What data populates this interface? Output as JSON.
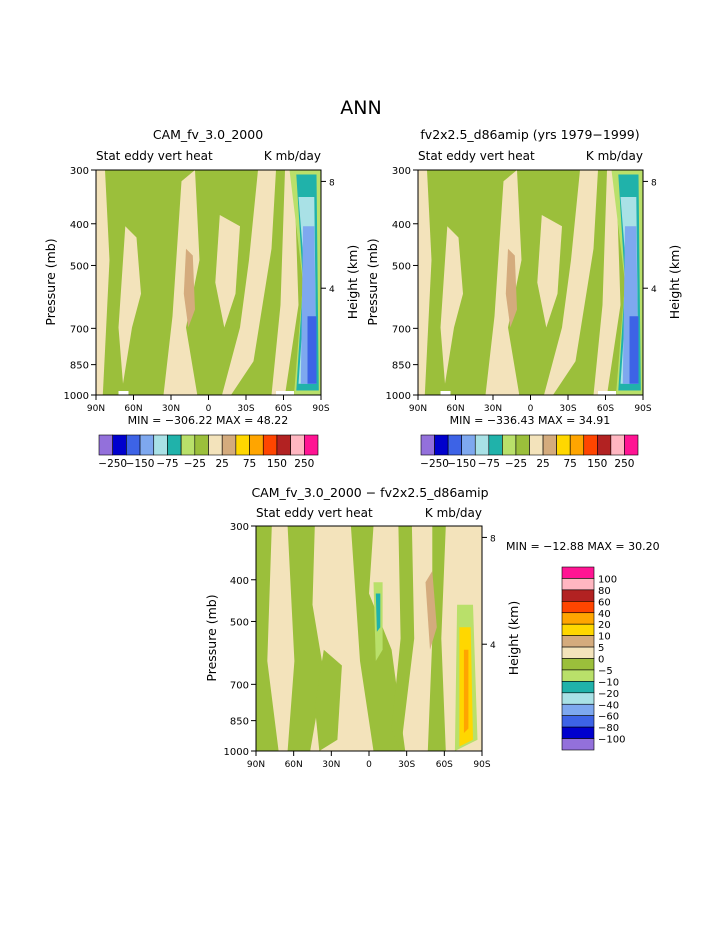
{
  "page_title": "ANN",
  "colors": {
    "green": "#9bbf3b",
    "cream": "#f3e3bb",
    "tan": "#d4ab7d",
    "light_green": "#b9e06a",
    "teal": "#20b2aa",
    "light_cyan": "#a9e1e6",
    "light_blue": "#7ea8ef",
    "blue": "#3d63e6",
    "yellow": "#ffd700",
    "white": "#ffffff"
  },
  "pressure_ticks": [
    "300",
    "400",
    "500",
    "700",
    "850",
    "1000"
  ],
  "height_ticks": [
    "8",
    "4"
  ],
  "lat_ticks": [
    "90N",
    "60N",
    "30N",
    "0",
    "30S",
    "60S",
    "90S"
  ],
  "panel1": {
    "title": "CAM_fv_3.0_2000",
    "left_label": "Stat eddy vert heat",
    "right_label": "K mb/day",
    "ylabel": "Pressure (mb)",
    "ylabel_right": "Height (km)",
    "stats": "MIN = −306.22   MAX =  48.22"
  },
  "panel2": {
    "title": "fv2x2.5_d86amip (yrs 1979−1999)",
    "left_label": "Stat eddy vert heat",
    "right_label": "K mb/day",
    "ylabel": "Pressure (mb)",
    "ylabel_right": "Height (km)",
    "stats": "MIN = −336.43   MAX =  34.91"
  },
  "panel3": {
    "title": "CAM_fv_3.0_2000 − fv2x2.5_d86amip",
    "left_label": "Stat eddy vert heat",
    "right_label": "K mb/day",
    "ylabel": "Pressure (mb)",
    "ylabel_right": "Height (km)",
    "stats": "MIN = −12.88   MAX =  30.20"
  },
  "colorbar_top": {
    "colors": [
      "#9370db",
      "#0000cd",
      "#3d63e6",
      "#7ea8ef",
      "#a9e1e6",
      "#20b2aa",
      "#b9e06a",
      "#9bbf3b",
      "#f3e3bb",
      "#d4ab7d",
      "#ffd700",
      "#ffa500",
      "#ff4500",
      "#b22222",
      "#ffb6c1",
      "#ff1493"
    ],
    "labels": [
      "−250",
      "−150",
      "−75",
      "−25",
      "25",
      "75",
      "150",
      "250"
    ]
  },
  "colorbar_diff": {
    "colors": [
      "#ff1493",
      "#ffb6c1",
      "#b22222",
      "#ff4500",
      "#ffa500",
      "#ffd700",
      "#d4ab7d",
      "#f3e3bb",
      "#9bbf3b",
      "#b9e06a",
      "#20b2aa",
      "#a9e1e6",
      "#7ea8ef",
      "#3d63e6",
      "#0000cd",
      "#9370db"
    ],
    "labels": [
      "100",
      "80",
      "60",
      "40",
      "20",
      "10",
      "5",
      "0",
      "−5",
      "−10",
      "−20",
      "−40",
      "−60",
      "−80",
      "−100"
    ]
  },
  "chart_data": [
    {
      "type": "heatmap",
      "title": "CAM_fv_3.0_2000",
      "subtitle_left": "Stat eddy vert heat",
      "subtitle_right": "K mb/day",
      "xlabel": "",
      "ylabel": "Pressure (mb)",
      "ylabel_right": "Height (km)",
      "x_ticks": [
        "90N",
        "60N",
        "30N",
        "0",
        "30S",
        "60S",
        "90S"
      ],
      "y_ticks": [
        300,
        400,
        500,
        700,
        850,
        1000
      ],
      "y_right_ticks": [
        8,
        4
      ],
      "ylim": [
        1000,
        300
      ],
      "y_scale": "log-pressure",
      "min": -306.22,
      "max": 48.22
    },
    {
      "type": "heatmap",
      "title": "fv2x2.5_d86amip (yrs 1979−1999)",
      "subtitle_left": "Stat eddy vert heat",
      "subtitle_right": "K mb/day",
      "xlabel": "",
      "ylabel": "Pressure (mb)",
      "ylabel_right": "Height (km)",
      "x_ticks": [
        "90N",
        "60N",
        "30N",
        "0",
        "30S",
        "60S",
        "90S"
      ],
      "y_ticks": [
        300,
        400,
        500,
        700,
        850,
        1000
      ],
      "y_right_ticks": [
        8,
        4
      ],
      "ylim": [
        1000,
        300
      ],
      "y_scale": "log-pressure",
      "min": -336.43,
      "max": 34.91
    },
    {
      "type": "heatmap",
      "title": "CAM_fv_3.0_2000 − fv2x2.5_d86amip",
      "subtitle_left": "Stat eddy vert heat",
      "subtitle_right": "K mb/day",
      "xlabel": "",
      "ylabel": "Pressure (mb)",
      "ylabel_right": "Height (km)",
      "x_ticks": [
        "90N",
        "60N",
        "30N",
        "0",
        "30S",
        "60S",
        "90S"
      ],
      "y_ticks": [
        300,
        400,
        500,
        700,
        850,
        1000
      ],
      "y_right_ticks": [
        8,
        4
      ],
      "ylim": [
        1000,
        300
      ],
      "y_scale": "log-pressure",
      "min": -12.88,
      "max": 30.2
    }
  ]
}
